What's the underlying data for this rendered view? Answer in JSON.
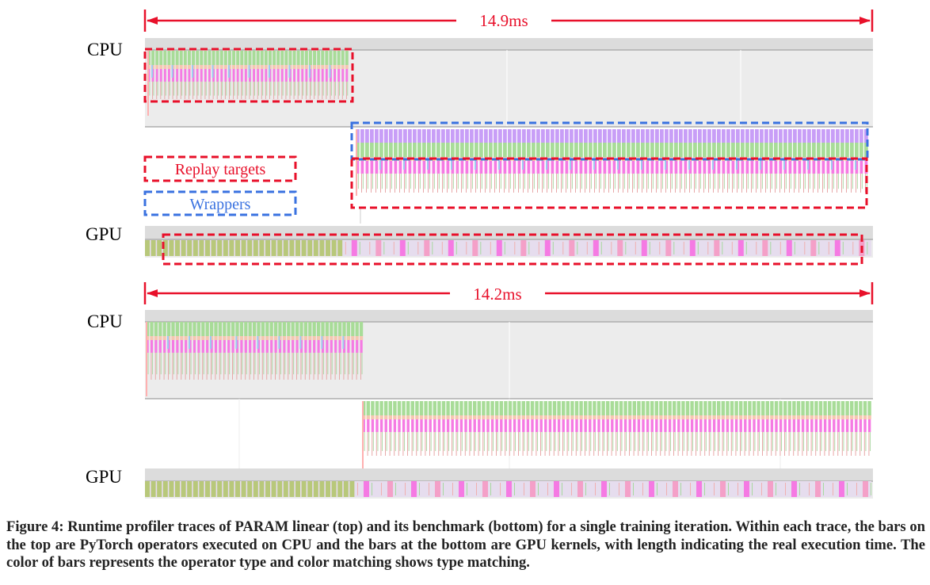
{
  "figure": {
    "caption": "Figure 4: Runtime profiler traces of PARAM linear (top) and its benchmark (bottom) for a single training iteration. Within each trace, the bars on the top are PyTorch operators executed on CPU and the bars at the bottom are GPU kernels, with length indicating the real execution time. The color of bars represents the operator type and color matching shows type matching."
  },
  "legend": {
    "replay_targets": "Replay targets",
    "wrappers": "Wrappers"
  },
  "colors": {
    "replay_targets": "#e8102a",
    "wrappers": "#3a72e0",
    "green_op": "#a8dc98",
    "pink_op": "#f57ae3",
    "purple_op": "#c89ef7",
    "olive_kernel": "#b8c87a",
    "track_bg": "#ececec"
  },
  "traces": [
    {
      "name": "PARAM linear",
      "duration_label": "14.9ms",
      "cpu_label": "CPU",
      "gpu_label": "GPU"
    },
    {
      "name": "benchmark",
      "duration_label": "14.2ms",
      "cpu_label": "CPU",
      "gpu_label": "GPU"
    }
  ]
}
